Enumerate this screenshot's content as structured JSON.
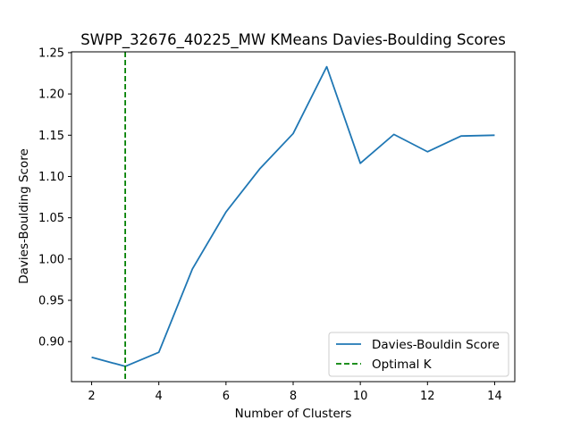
{
  "chart_data": {
    "type": "line",
    "title": "SWPP_32676_40225_MW KMeans Davies-Boulding Scores",
    "xlabel": "Number of Clusters",
    "ylabel": "Davies-Boulding Score",
    "xlim": [
      1.4,
      14.6
    ],
    "ylim": [
      0.8515,
      1.251
    ],
    "xticks": [
      2,
      4,
      6,
      8,
      10,
      12,
      14
    ],
    "yticks": [
      0.9,
      0.95,
      1.0,
      1.05,
      1.1,
      1.15,
      1.2,
      1.25
    ],
    "ytick_labels": [
      "0.90",
      "0.95",
      "1.00",
      "1.05",
      "1.10",
      "1.15",
      "1.20",
      "1.25"
    ],
    "grid": false,
    "legend_position": "lower-right",
    "series": [
      {
        "name": "Davies-Bouldin Score",
        "color": "#1f77b4",
        "x": [
          2,
          3,
          4,
          5,
          6,
          7,
          8,
          9,
          10,
          11,
          12,
          13,
          14
        ],
        "y": [
          0.881,
          0.87,
          0.887,
          0.988,
          1.057,
          1.109,
          1.152,
          1.233,
          1.116,
          1.151,
          1.13,
          1.149,
          1.15
        ]
      }
    ],
    "vlines": [
      {
        "name": "Optimal K",
        "x": 3,
        "color": "#008000",
        "style": "dashed"
      }
    ]
  }
}
